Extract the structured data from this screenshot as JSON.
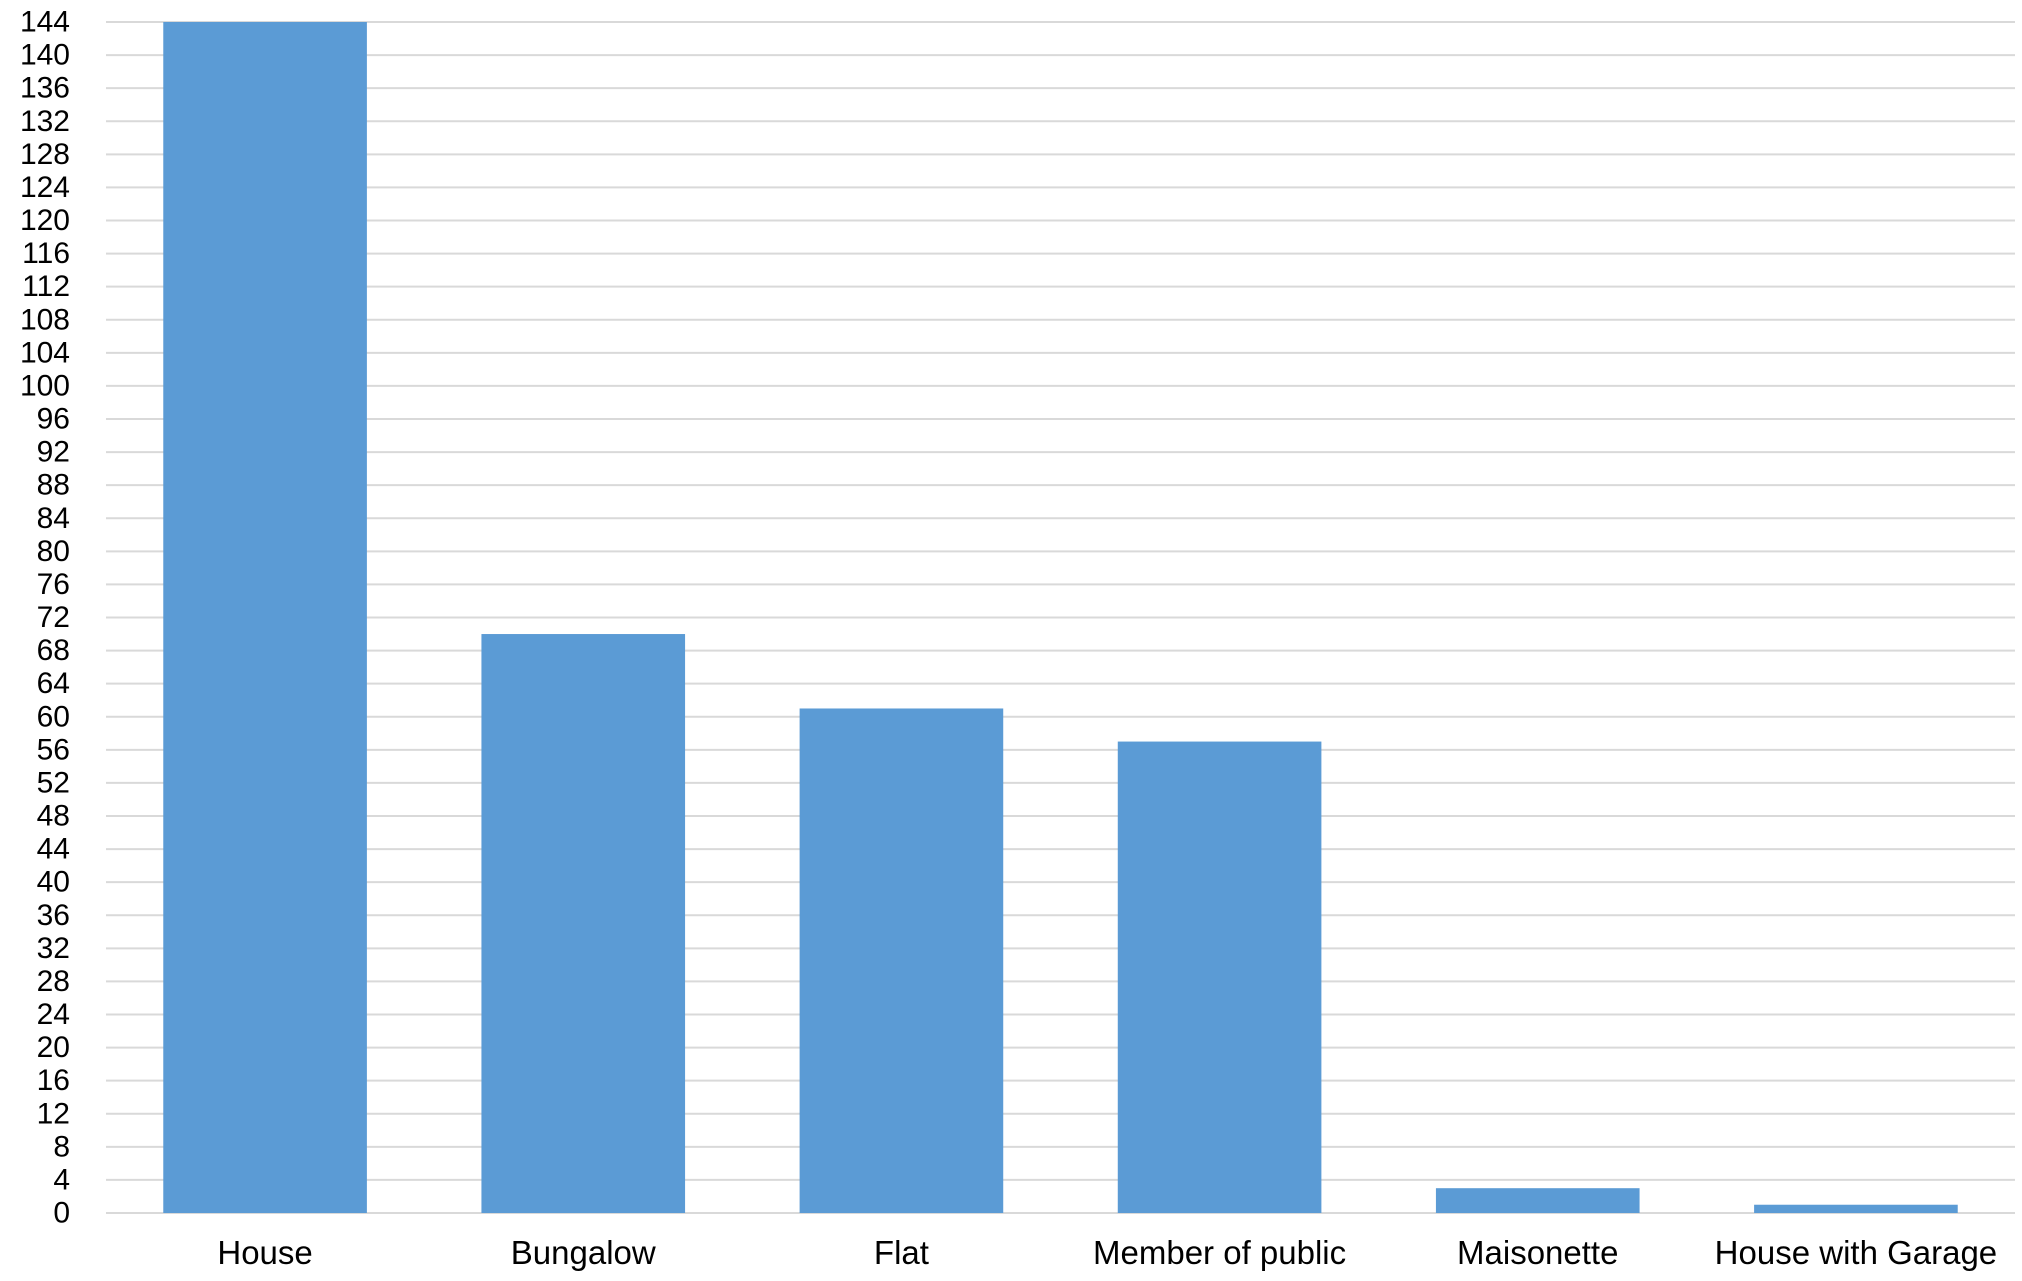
{
  "chart_data": {
    "type": "bar",
    "categories": [
      "House",
      "Bungalow",
      "Flat",
      "Member of public",
      "Maisonette",
      "House with Garage"
    ],
    "values": [
      144,
      70,
      61,
      57,
      3,
      1
    ],
    "title": "",
    "xlabel": "",
    "ylabel": "",
    "ylim": [
      0,
      144
    ],
    "y_tick_step": 4,
    "grid": true,
    "legend": "none",
    "bar_color": "#5b9bd5",
    "grid_color": "#d9d9d9"
  }
}
